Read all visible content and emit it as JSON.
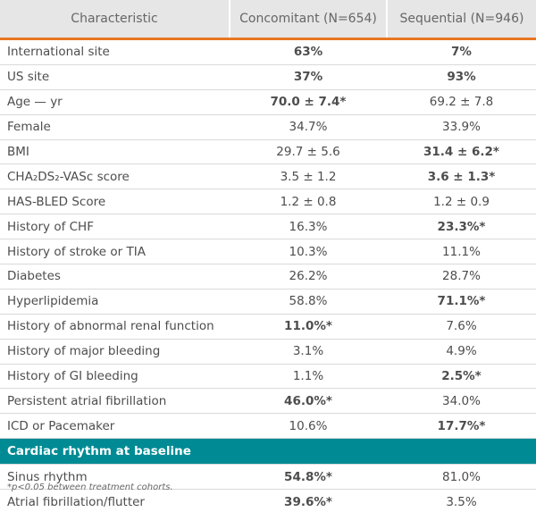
{
  "columns": [
    "Characteristic",
    "Concomitant (N=654)",
    "Sequential (N=946)"
  ],
  "rows": [
    {
      "label": "International site",
      "c": "63%",
      "cb": true,
      "s": "7%",
      "sb": true
    },
    {
      "label": "US site",
      "c": "37%",
      "cb": true,
      "s": "93%",
      "sb": true
    },
    {
      "label": "Age — yr",
      "c": "70.0 ± 7.4*",
      "cb": true,
      "s": "69.2 ± 7.8",
      "sb": false
    },
    {
      "label": "Female",
      "c": "34.7%",
      "cb": false,
      "s": "33.9%",
      "sb": false
    },
    {
      "label": "BMI",
      "c": "29.7 ± 5.6",
      "cb": false,
      "s": "31.4 ± 6.2*",
      "sb": true
    },
    {
      "label": "CHA₂DS₂-VASc score",
      "c": "3.5 ± 1.2",
      "cb": false,
      "s": "3.6 ± 1.3*",
      "sb": true
    },
    {
      "label": "HAS-BLED Score",
      "c": "1.2 ± 0.8",
      "cb": false,
      "s": "1.2 ± 0.9",
      "sb": false
    },
    {
      "label": "History of CHF",
      "c": "16.3%",
      "cb": false,
      "s": "23.3%*",
      "sb": true
    },
    {
      "label": "History of stroke or TIA",
      "c": "10.3%",
      "cb": false,
      "s": "11.1%",
      "sb": false
    },
    {
      "label": "Diabetes",
      "c": "26.2%",
      "cb": false,
      "s": "28.7%",
      "sb": false
    },
    {
      "label": "Hyperlipidemia",
      "c": "58.8%",
      "cb": false,
      "s": "71.1%*",
      "sb": true
    },
    {
      "label": "History of abnormal renal function",
      "c": "11.0%*",
      "cb": true,
      "s": "7.6%",
      "sb": false
    },
    {
      "label": "History of major bleeding",
      "c": "3.1%",
      "cb": false,
      "s": "4.9%",
      "sb": false
    },
    {
      "label": "History of GI bleeding",
      "c": "1.1%",
      "cb": false,
      "s": "2.5%*",
      "sb": true
    },
    {
      "label": "Persistent atrial fibrillation",
      "c": "46.0%*",
      "cb": true,
      "s": "34.0%",
      "sb": false
    },
    {
      "label": "ICD or Pacemaker",
      "c": "10.6%",
      "cb": false,
      "s": "17.7%*",
      "sb": true
    }
  ],
  "section": "Cardiac rhythm at baseline",
  "section_rows": [
    {
      "label": "Sinus rhythm",
      "c": "54.8%*",
      "cb": true,
      "s": "81.0%",
      "sb": false
    },
    {
      "label": "Atrial fibrillation/flutter",
      "c": "39.6%*",
      "cb": true,
      "s": "3.5%",
      "sb": false
    }
  ],
  "footnote": "*p<0.05 between treatment cohorts.",
  "colors": {
    "header_rule": "#e87722",
    "section": "#008b94"
  }
}
